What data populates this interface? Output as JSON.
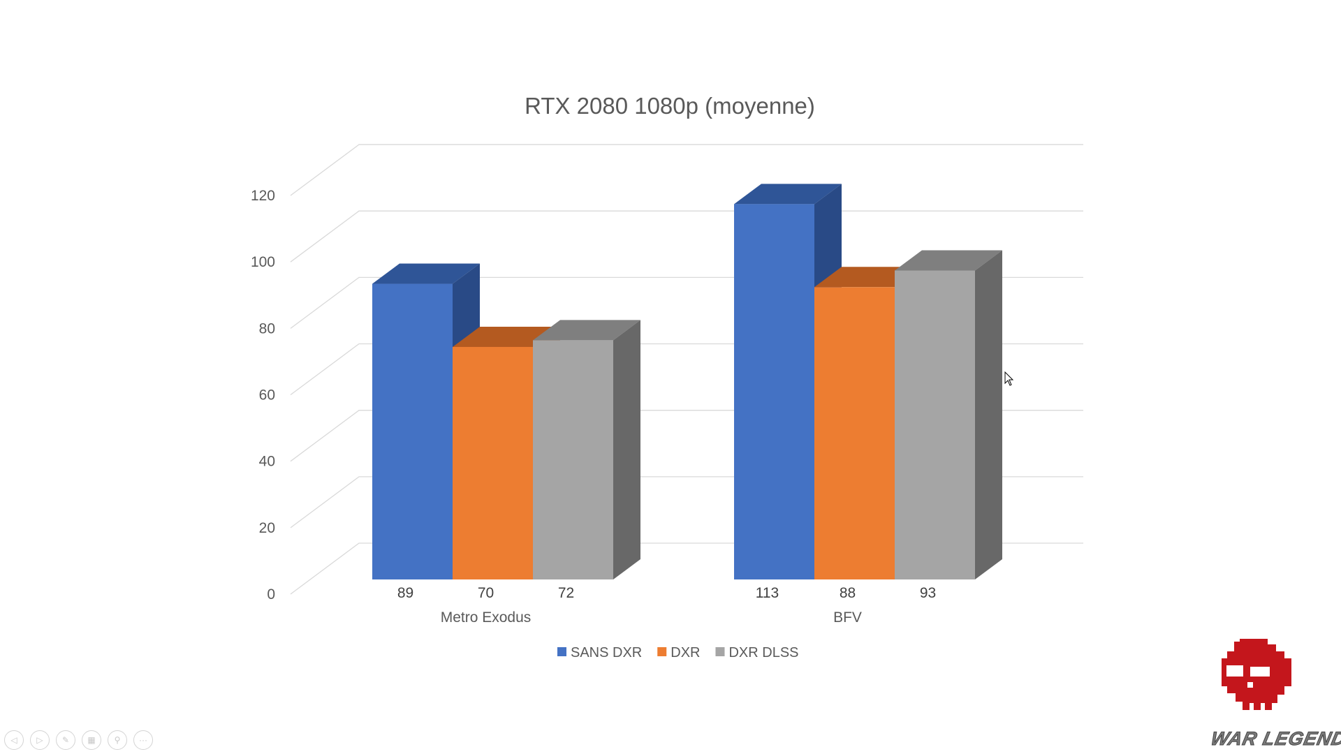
{
  "chart_data": {
    "type": "bar",
    "style": "3d-clustered-column",
    "title": "RTX 2080 1080p (moyenne)",
    "categories": [
      "Metro Exodus",
      "BFV"
    ],
    "series": [
      {
        "name": "SANS DXR",
        "values": [
          89,
          113
        ],
        "color": "#4472c4",
        "top": "#2f5597",
        "side": "#294a86"
      },
      {
        "name": "DXR",
        "values": [
          70,
          88
        ],
        "color": "#ed7d31",
        "top": "#b45a20",
        "side": "#ae561d"
      },
      {
        "name": "DXR DLSS",
        "values": [
          72,
          93
        ],
        "color": "#a5a5a5",
        "top": "#7f7f7f",
        "side": "#686868"
      }
    ],
    "yticks": [
      "0",
      "20",
      "40",
      "60",
      "80",
      "100",
      "120"
    ],
    "ylim": [
      0,
      120
    ],
    "grid": true,
    "legend": "bottom",
    "data_labels": true
  },
  "controls": [
    "previous",
    "next",
    "pen",
    "slides",
    "zoom",
    "more"
  ],
  "logo": {
    "text": "WAR LEGEND"
  }
}
